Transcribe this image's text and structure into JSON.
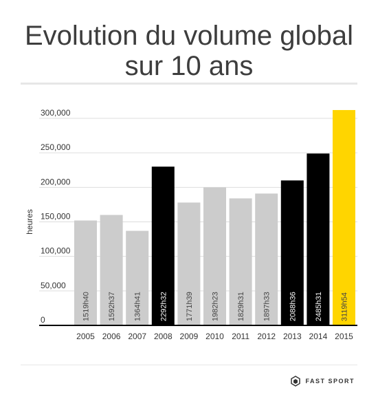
{
  "header": {
    "title_line1": "Evolution du volume global",
    "title_line2": "sur 10 ans"
  },
  "brand": {
    "name": "FAST SPORT",
    "logo_icon": "hexagon-logo-icon"
  },
  "colors": {
    "normal": "#cccccc",
    "highlight": "#000000",
    "record": "#ffd500",
    "axis": "#000000",
    "grid": "#dddddd"
  },
  "chart_data": {
    "type": "bar",
    "title": "Evolution du volume global sur 10 ans",
    "ylabel": "heures",
    "ylim": [
      0,
      300000
    ],
    "yticks": [
      "0",
      "50,000",
      "100,000",
      "150,000",
      "200,000",
      "250,000",
      "300,000"
    ],
    "grid": true,
    "categories": [
      "2005",
      "2006",
      "2007",
      "2008",
      "2009",
      "2010",
      "2011",
      "2012",
      "2013",
      "2014",
      "2015"
    ],
    "values": [
      152000,
      160000,
      137000,
      230000,
      178000,
      200000,
      184000,
      191000,
      210000,
      249000,
      312000
    ],
    "labels": [
      "1519h40",
      "1592h37",
      "1364h41",
      "2292h32",
      "1771h39",
      "1982h23",
      "1829h31",
      "1897h33",
      "2088h36",
      "2485h31",
      "3119h54"
    ],
    "bar_colors": [
      "normal",
      "normal",
      "normal",
      "highlight",
      "normal",
      "normal",
      "normal",
      "normal",
      "highlight",
      "highlight",
      "record"
    ]
  }
}
